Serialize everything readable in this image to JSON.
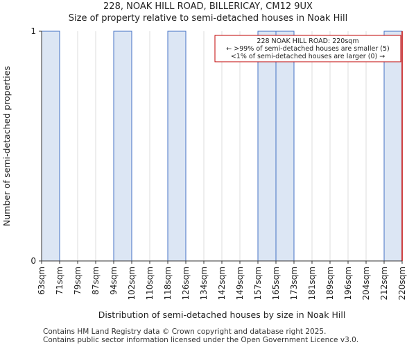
{
  "title_line1": "228, NOAK HILL ROAD, BILLERICAY, CM12 9UX",
  "title_line2": "Size of property relative to semi-detached houses in Noak Hill",
  "footer_line1": "Contains HM Land Registry data © Crown copyright and database right 2025.",
  "footer_line2": "Contains public sector information licensed under the Open Government Licence v3.0.",
  "colors": {
    "bar_fill": "#dce6f4",
    "bar_edge": "#4472c4",
    "marker": "#c00000",
    "grid": "#dddddd",
    "axis": "#333333"
  },
  "chart_data": {
    "type": "bar",
    "xlabel": "Distribution of semi-detached houses by size in Noak Hill",
    "ylabel": "Number of semi-detached properties",
    "ylim": [
      0,
      1
    ],
    "yticks": [
      0,
      1
    ],
    "bin_edges": [
      "63sqm",
      "71sqm",
      "79sqm",
      "87sqm",
      "94sqm",
      "102sqm",
      "110sqm",
      "118sqm",
      "126sqm",
      "134sqm",
      "142sqm",
      "149sqm",
      "157sqm",
      "165sqm",
      "173sqm",
      "181sqm",
      "189sqm",
      "196sqm",
      "204sqm",
      "212sqm",
      "220sqm"
    ],
    "values": [
      1,
      0,
      0,
      0,
      1,
      0,
      0,
      1,
      0,
      0,
      0,
      0,
      1,
      1,
      0,
      0,
      0,
      0,
      0,
      1
    ],
    "marker_value": "220sqm",
    "annotation": {
      "line1": "228 NOAK HILL ROAD: 220sqm",
      "line2": "← >99% of semi-detached houses are smaller (5)",
      "line3": "<1% of semi-detached houses are larger (0) →"
    }
  }
}
